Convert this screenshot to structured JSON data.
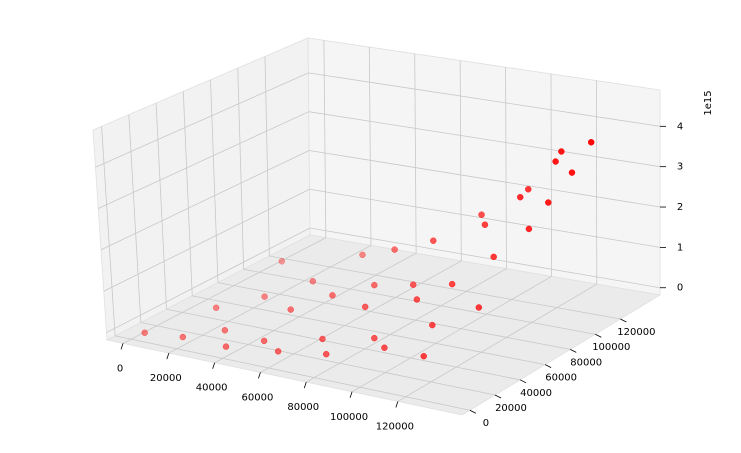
{
  "chart_data": {
    "type": "scatter3d",
    "z_offset_label": "1e15",
    "color": "#ff0000",
    "grid": true,
    "x": [
      5000,
      20000,
      40000,
      30000,
      15000,
      50000,
      60000,
      70000,
      25000,
      45000,
      80000,
      90000,
      35000,
      55000,
      100000,
      65000,
      10000,
      75000,
      110000,
      40000,
      85000,
      120000,
      95000,
      60000,
      105000,
      125000,
      80000,
      115000,
      100000,
      90000,
      125000,
      110000,
      120000,
      130000,
      130000,
      118000,
      105000,
      128000
    ],
    "y": [
      2000,
      5000,
      3000,
      20000,
      40000,
      15000,
      8000,
      25000,
      60000,
      45000,
      10000,
      30000,
      80000,
      60000,
      20000,
      75000,
      100000,
      50000,
      40000,
      110000,
      70000,
      15000,
      55000,
      100000,
      65000,
      50000,
      95000,
      80000,
      100000,
      115000,
      90000,
      110000,
      120000,
      115000,
      130000,
      128000,
      125000,
      100000
    ],
    "z": [
      0.0,
      0.02,
      0.05,
      0.05,
      0.1,
      0.1,
      0.08,
      0.2,
      0.15,
      0.3,
      0.2,
      0.35,
      0.3,
      0.5,
      0.4,
      0.6,
      0.2,
      0.6,
      0.7,
      0.5,
      0.9,
      0.5,
      0.9,
      1.0,
      1.2,
      1.1,
      1.5,
      1.7,
      2.0,
      1.9,
      2.3,
      2.6,
      3.4,
      3.3,
      3.8,
      3.5,
      2.5,
      2.8
    ],
    "xlim": [
      -7000,
      148000
    ],
    "ylim": [
      -6300,
      151600
    ],
    "zlim": [
      -0.18,
      4.9
    ],
    "xticks": [
      0,
      20000,
      40000,
      60000,
      80000,
      100000,
      120000
    ],
    "yticks": [
      0,
      20000,
      40000,
      60000,
      80000,
      100000,
      120000
    ],
    "zticks": [
      0,
      1,
      2,
      3,
      4
    ]
  }
}
